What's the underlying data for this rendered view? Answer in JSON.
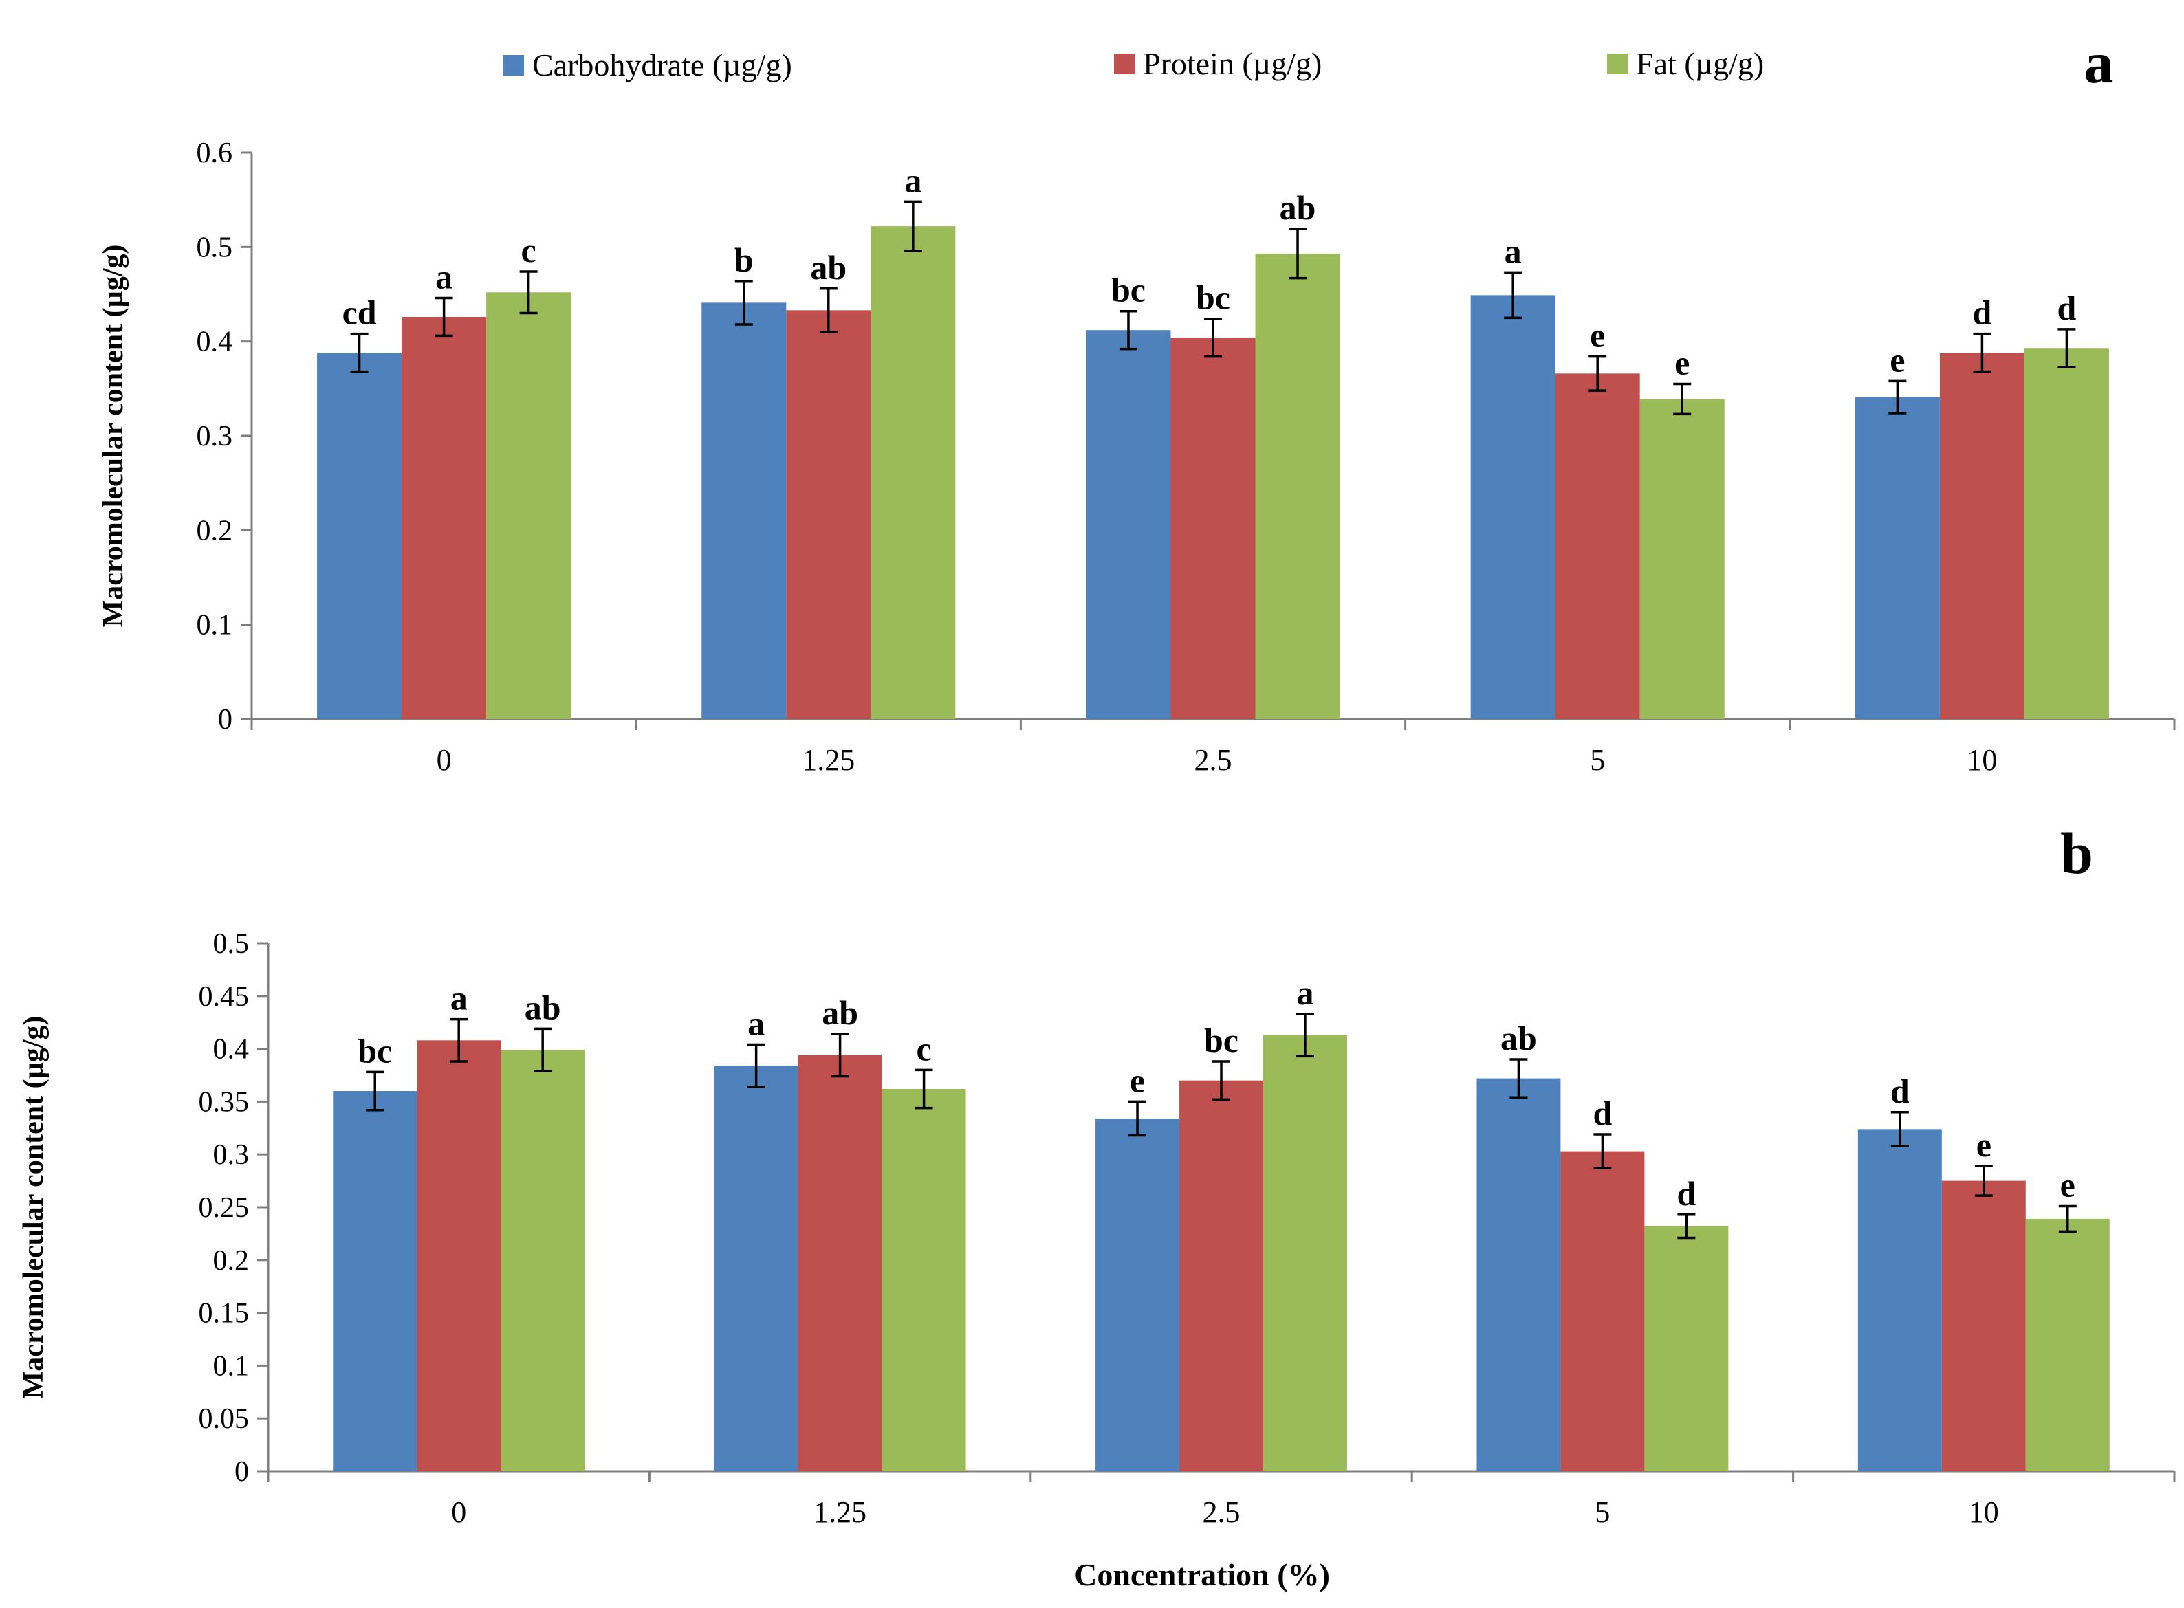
{
  "colors": {
    "Carbohydrate (µg/g)": "#4F81BD",
    "Protein (µg/g)": "#C0504D",
    "Fat (µg/g)": "#9BBB59"
  },
  "legend": {
    "placement": "top-center",
    "items": [
      "Carbohydrate (µg/g)",
      "Protein (µg/g)",
      "Fat (µg/g)"
    ]
  },
  "xlabel": "Concentration  (%)",
  "chart_data": [
    {
      "type": "bar",
      "panel_label": "a",
      "categories": [
        "0",
        "1.25",
        "2.5",
        "5",
        "10"
      ],
      "ylabel": "Macromolecular  content  (µg/g)",
      "xlabel": "",
      "ylim": [
        0,
        0.6
      ],
      "yticks": [
        "0",
        "0.1",
        "0.2",
        "0.3",
        "0.4",
        "0.5",
        "0.6"
      ],
      "grid": false,
      "series": [
        {
          "name": "Carbohydrate (µg/g)",
          "values": [
            0.388,
            0.441,
            0.412,
            0.449,
            0.341
          ],
          "errors": [
            0.02,
            0.023,
            0.02,
            0.024,
            0.017
          ],
          "labels": [
            "cd",
            "b",
            "bc",
            "a",
            "e"
          ]
        },
        {
          "name": "Protein (µg/g)",
          "values": [
            0.426,
            0.433,
            0.404,
            0.366,
            0.388
          ],
          "errors": [
            0.02,
            0.023,
            0.02,
            0.018,
            0.02
          ],
          "labels": [
            "a",
            "ab",
            "bc",
            "e",
            "d"
          ]
        },
        {
          "name": "Fat (µg/g)",
          "values": [
            0.452,
            0.522,
            0.493,
            0.339,
            0.393
          ],
          "errors": [
            0.022,
            0.026,
            0.026,
            0.016,
            0.02
          ],
          "labels": [
            "c",
            "a",
            "ab",
            "e",
            "d"
          ]
        }
      ]
    },
    {
      "type": "bar",
      "panel_label": "b",
      "categories": [
        "0",
        "1.25",
        "2.5",
        "5",
        "10"
      ],
      "ylabel": "Macromolecular  content  (µg/g)",
      "xlabel": "Concentration  (%)",
      "ylim": [
        0,
        0.5
      ],
      "yticks": [
        "0",
        "0.05",
        "0.1",
        "0.15",
        "0.2",
        "0.25",
        "0.3",
        "0.35",
        "0.4",
        "0.45",
        "0.5"
      ],
      "grid": false,
      "series": [
        {
          "name": "Carbohydrate (µg/g)",
          "values": [
            0.36,
            0.384,
            0.334,
            0.372,
            0.324
          ],
          "errors": [
            0.018,
            0.02,
            0.016,
            0.018,
            0.016
          ],
          "labels": [
            "bc",
            "a",
            "e",
            "ab",
            "d"
          ]
        },
        {
          "name": "Protein (µg/g)",
          "values": [
            0.408,
            0.394,
            0.37,
            0.303,
            0.275
          ],
          "errors": [
            0.02,
            0.02,
            0.018,
            0.016,
            0.014
          ],
          "labels": [
            "a",
            "ab",
            "bc",
            "d",
            "e"
          ]
        },
        {
          "name": "Fat (µg/g)",
          "values": [
            0.399,
            0.362,
            0.413,
            0.232,
            0.239
          ],
          "errors": [
            0.02,
            0.018,
            0.02,
            0.011,
            0.012
          ],
          "labels": [
            "ab",
            "c",
            "a",
            "d",
            "e"
          ]
        }
      ]
    }
  ]
}
